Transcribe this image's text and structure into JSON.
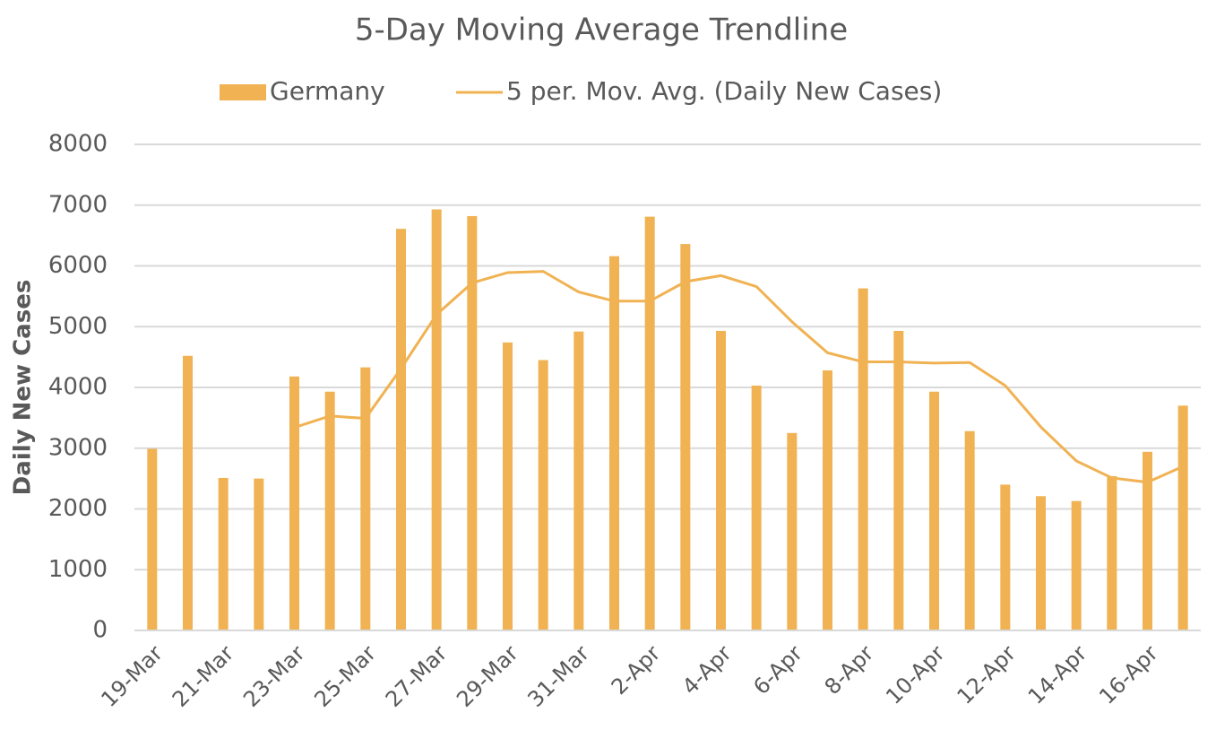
{
  "chart_data": {
    "type": "bar",
    "title": "5-Day Moving Average Trendline",
    "y_axis_label": "Daily New Cases",
    "categories": [
      "19-Mar",
      null,
      "21-Mar",
      null,
      "23-Mar",
      null,
      "25-Mar",
      null,
      "27-Mar",
      null,
      "29-Mar",
      null,
      "31-Mar",
      null,
      "2-Apr",
      null,
      "4-Apr",
      null,
      "6-Apr",
      null,
      "8-Apr",
      null,
      "10-Apr",
      null,
      "12-Apr",
      null,
      "14-Apr",
      null,
      "16-Apr",
      null
    ],
    "series": [
      {
        "name": "Germany",
        "type": "bar",
        "color": "#f0b252",
        "values": [
          2990,
          4520,
          2510,
          2500,
          4180,
          3930,
          4330,
          6610,
          6930,
          6820,
          4740,
          4450,
          4920,
          6160,
          6810,
          6360,
          4930,
          4030,
          3250,
          4280,
          5630,
          4930,
          3930,
          3280,
          2400,
          2210,
          2130,
          2540,
          2940,
          3700
        ]
      },
      {
        "name": "5 per. Mov. Avg. (Daily New Cases)",
        "type": "line",
        "color": "#f0b252",
        "values": [
          null,
          null,
          null,
          null,
          3340,
          3530,
          3490,
          4310,
          5200,
          5720,
          5890,
          5910,
          5570,
          5420,
          5420,
          5740,
          5840,
          5660,
          5080,
          4570,
          4420,
          4420,
          4400,
          4410,
          4030,
          3350,
          2790,
          2510,
          2440,
          2700
        ]
      }
    ],
    "ylim": [
      0,
      8000
    ],
    "yticks": [
      0,
      1000,
      2000,
      3000,
      4000,
      5000,
      6000,
      7000,
      8000
    ],
    "grid": true
  }
}
